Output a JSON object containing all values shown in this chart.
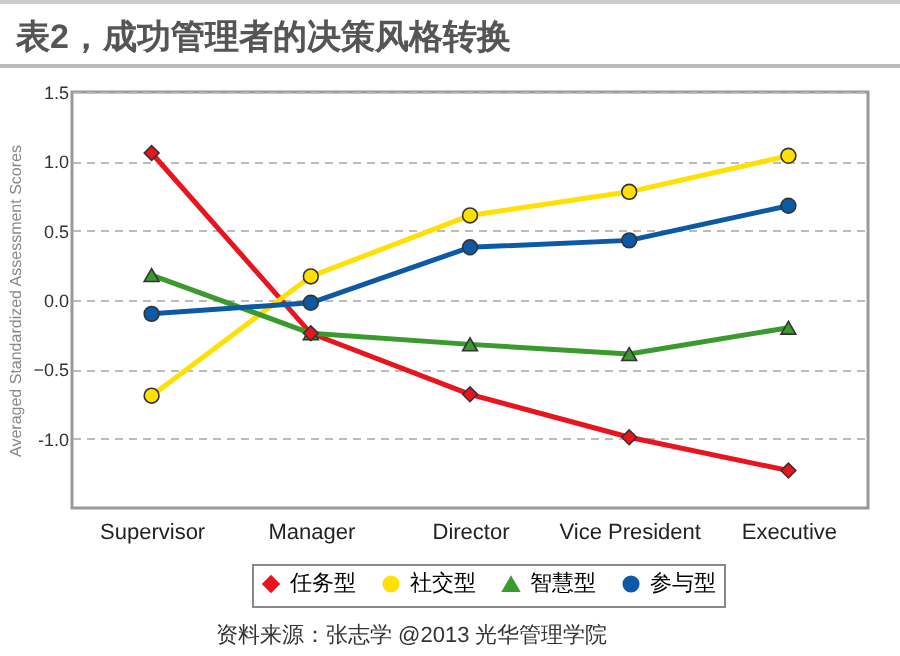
{
  "chart_data": {
    "type": "line",
    "title": "表2，成功管理者的决策风格转换",
    "ylabel": "Averaged Standardized Assessment Scores",
    "categories": [
      "Supervisor",
      "Manager",
      "Director",
      "Vice President",
      "Executive"
    ],
    "series": [
      {
        "name": "任务型",
        "color": "#e8141e",
        "marker": "diamond",
        "values": [
          1.06,
          -0.24,
          -0.68,
          -0.99,
          -1.23
        ]
      },
      {
        "name": "社交型",
        "color": "#ffe000",
        "marker": "circle",
        "values": [
          -0.69,
          0.17,
          0.61,
          0.78,
          1.04
        ]
      },
      {
        "name": "智慧型",
        "color": "#3a9a2e",
        "marker": "triangle",
        "values": [
          0.18,
          -0.24,
          -0.32,
          -0.39,
          -0.2
        ]
      },
      {
        "name": "参与型",
        "color": "#0c5aa6",
        "marker": "circle",
        "values": [
          -0.1,
          -0.02,
          0.38,
          0.43,
          0.68
        ]
      }
    ],
    "ylim": [
      -1.5,
      1.5
    ],
    "yticks": [
      {
        "value": -1,
        "label": "-1.0"
      },
      -0.5,
      {
        "value": 0,
        "label": "0.0"
      },
      0.5,
      {
        "value": 1,
        "label": "1.0"
      },
      1.5
    ],
    "grid": "y",
    "legend": "bottom",
    "line_style": "solid",
    "annotations": [
      "资料来源：张志学 @2013 光华管理学院"
    ]
  }
}
